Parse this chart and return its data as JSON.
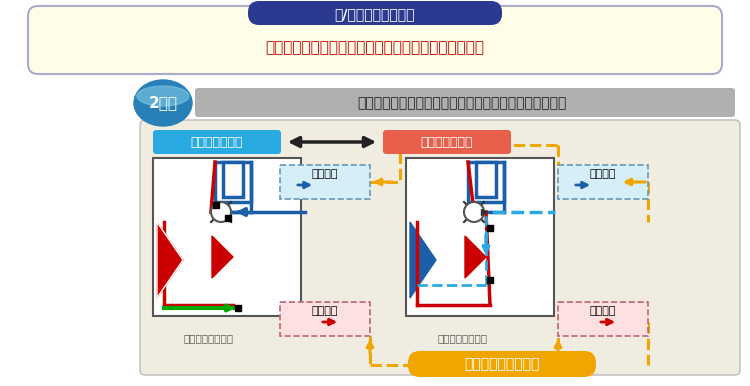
{
  "title_banner_text": "冷/暖モード切換時も",
  "title_banner_bg": "#2b3990",
  "title_banner_text_color": "#ffffff",
  "yellow_box_text": "・圧縮機の停止不要　　・切換時の冷媒流動音を抑制",
  "yellow_box_text_color": "#cc0000",
  "yellow_box_bg": "#fefee8",
  "yellow_box_border": "#aaaacc",
  "badge_text": "2管式",
  "badge_bg_top": "#7ec8e3",
  "badge_bg_bot": "#2980b9",
  "subtitle_text": "圧縮機の運転を停止することなく運転モードの切換実施",
  "subtitle_bg": "#b0b0b0",
  "subtitle_text_color": "#222222",
  "main_bg": "#f0ede0",
  "main_border": "#bbbbbb",
  "label_cooling": "冷房主体モード",
  "label_cooling_bg": "#29abe2",
  "label_heating": "暖房主体モード",
  "label_heating_bg": "#e8604c",
  "label_text_color": "#ffffff",
  "low_pressure_gas_text": "低圧ガス",
  "low_pressure_two_text": "低圧二相",
  "high_pressure_two_text": "高圧二相",
  "high_pressure_gas_text": "高圧ガス",
  "pipe_label_blue_bg": "#d6eef8",
  "pipe_label_red_bg": "#fde0e0",
  "outdoor_unit_text": "〈室外ユニット〉",
  "flow_text": "流れ方向が常に一定",
  "flow_bg": "#f0a500",
  "flow_text_color": "#ffffff",
  "arrow_orange": "#f0a500",
  "arrow_blue": "#1a5fa8",
  "arrow_red": "#cc0000",
  "arrow_green": "#00aa00",
  "arrow_cyan": "#29abe2",
  "color_dark": "#222222"
}
